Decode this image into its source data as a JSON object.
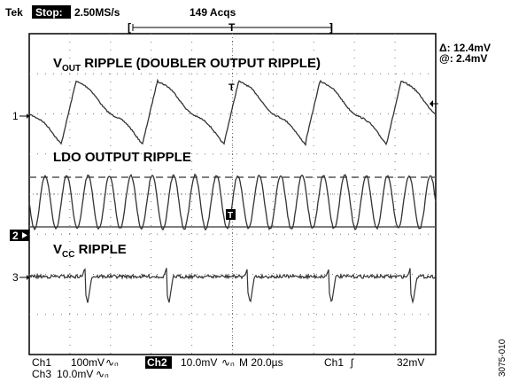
{
  "header": {
    "brand": "Tek",
    "run_state": "Stop:",
    "sample_rate": "2.50MS/s",
    "acquisitions": "149 Acqs",
    "trigger_marker": "T"
  },
  "cursor_readout": {
    "delta": "Δ: 12.4mV",
    "at": "@: 2.4mV"
  },
  "traces": [
    {
      "name_main": "V",
      "name_sub": "OUT",
      "name_rest": " RIPPLE (DOUBLER OUTPUT RIPPLE)",
      "channel_marker": "1"
    },
    {
      "name_main": "LDO OUTPUT RIPPLE",
      "name_sub": "",
      "name_rest": "",
      "channel_marker": "2"
    },
    {
      "name_main": "V",
      "name_sub": "CC",
      "name_rest": " RIPPLE",
      "channel_marker": "3"
    }
  ],
  "status_bar": {
    "ch1": "Ch1",
    "ch1_scale": "100mV",
    "ch2": "Ch2",
    "ch2_scale": "10.0mV",
    "timebase": "M 20.0µs",
    "trig_source": "Ch1",
    "trig_level": "32mV",
    "ch3": "Ch3",
    "ch3_scale": "10.0mV"
  },
  "figure_id": "3075-010",
  "chart_data": {
    "type": "line",
    "grid": true,
    "series": [
      {
        "name": "VOUT RIPPLE (DOUBLER OUTPUT RIPPLE)",
        "waveform": "sawtooth",
        "cycles": 5,
        "color": "#333333"
      },
      {
        "name": "LDO OUTPUT RIPPLE",
        "waveform": "sine",
        "cycles": 19,
        "color": "#333333"
      },
      {
        "name": "VCC RIPPLE",
        "waveform": "spikes",
        "cycles": 5,
        "color": "#333333"
      }
    ]
  }
}
